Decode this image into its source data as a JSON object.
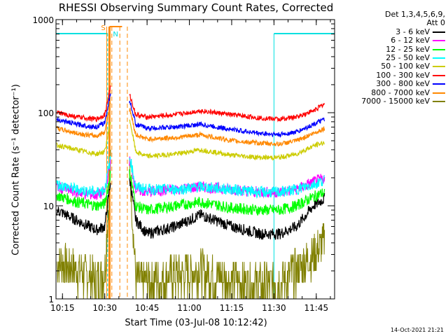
{
  "chart_data": {
    "type": "line",
    "title": "RHESSI Observing Summary Count Rates, Corrected",
    "xlabel": "Start Time (03-Jul-08 10:12:42)",
    "ylabel": "Corrected Count Rate (s⁻¹ detector⁻¹)",
    "yscale": "log",
    "ylim": [
      1,
      1000
    ],
    "xlim": [
      "10:12:42",
      "11:51:30"
    ],
    "x_ticks": [
      "10:15",
      "10:30",
      "10:45",
      "11:00",
      "11:15",
      "11:30",
      "11:45"
    ],
    "y_ticks": [
      "1",
      "10",
      "100",
      "1000"
    ],
    "legend_header": [
      "Det 1,3,4,5,6,9,",
      "Att 0"
    ],
    "legend_position": "right",
    "timestamp": "14-Oct-2021 21:21",
    "markers": {
      "s_label": "S",
      "n_label": "N",
      "night_periods": [
        [
          "10:12:42",
          "10:31:00"
        ],
        [
          "11:30:00",
          "11:51:30"
        ]
      ],
      "saa_time": "10:31:40",
      "dashed_times": [
        "10:32:30",
        "10:35:20",
        "10:38:00"
      ]
    },
    "series": [
      {
        "name": "3 - 6 keV",
        "color": "#000000",
        "times": [
          "10:13",
          "10:20",
          "10:27",
          "10:30",
          "10:32",
          "10:39",
          "10:41",
          "10:45",
          "10:55",
          "11:04",
          "11:15",
          "11:25",
          "11:32",
          "11:38",
          "11:44",
          "11:48"
        ],
        "values": [
          9,
          7,
          5.5,
          6,
          18,
          18,
          7,
          5,
          6,
          8,
          6,
          5,
          5,
          6,
          10,
          12
        ]
      },
      {
        "name": "6 - 12 keV",
        "color": "#ff00ff",
        "times": [
          "10:13",
          "10:20",
          "10:27",
          "10:30",
          "10:32",
          "10:39",
          "10:41",
          "10:45",
          "10:55",
          "11:04",
          "11:15",
          "11:25",
          "11:32",
          "11:38",
          "11:44",
          "11:48"
        ],
        "values": [
          16,
          14,
          13,
          14,
          30,
          30,
          15,
          14,
          15,
          16,
          15,
          14,
          14,
          15,
          18,
          20
        ]
      },
      {
        "name": "12 - 25 keV",
        "color": "#00ff00",
        "times": [
          "10:13",
          "10:20",
          "10:27",
          "10:30",
          "10:32",
          "10:39",
          "10:41",
          "10:45",
          "10:55",
          "11:04",
          "11:15",
          "11:25",
          "11:32",
          "11:38",
          "11:44",
          "11:48"
        ],
        "values": [
          13,
          11,
          10,
          10.5,
          22,
          22,
          10,
          9,
          10,
          11,
          9.5,
          9,
          9,
          10,
          12.5,
          14
        ]
      },
      {
        "name": "25 - 50 keV",
        "color": "#00ffff",
        "times": [
          "10:13",
          "10:20",
          "10:27",
          "10:30",
          "10:32",
          "10:39",
          "10:41",
          "10:45",
          "10:55",
          "11:04",
          "11:15",
          "11:25",
          "11:32",
          "11:38",
          "11:44",
          "11:48"
        ],
        "values": [
          17,
          15,
          14,
          15,
          32,
          32,
          16,
          15,
          15,
          16,
          15,
          14,
          14,
          15,
          17,
          19
        ]
      },
      {
        "name": "50 - 100 keV",
        "color": "#cccc00",
        "times": [
          "10:13",
          "10:20",
          "10:27",
          "10:30",
          "10:32",
          "10:39",
          "10:41",
          "10:45",
          "10:55",
          "11:04",
          "11:15",
          "11:25",
          "11:32",
          "11:38",
          "11:44",
          "11:48"
        ],
        "values": [
          45,
          40,
          36,
          38,
          80,
          80,
          38,
          34,
          36,
          40,
          35,
          33,
          33,
          36,
          44,
          48
        ]
      },
      {
        "name": "100 - 300 keV",
        "color": "#ff0000",
        "times": [
          "10:13",
          "10:20",
          "10:27",
          "10:30",
          "10:32",
          "10:39",
          "10:41",
          "10:45",
          "10:55",
          "11:04",
          "11:15",
          "11:25",
          "11:32",
          "11:38",
          "11:44",
          "11:48"
        ],
        "values": [
          100,
          90,
          85,
          95,
          190,
          150,
          95,
          90,
          95,
          105,
          95,
          88,
          85,
          90,
          105,
          125
        ]
      },
      {
        "name": "300 - 800 keV",
        "color": "#0000ff",
        "times": [
          "10:13",
          "10:20",
          "10:27",
          "10:30",
          "10:32",
          "10:39",
          "10:41",
          "10:45",
          "10:55",
          "11:04",
          "11:15",
          "11:25",
          "11:32",
          "11:38",
          "11:44",
          "11:48"
        ],
        "values": [
          85,
          75,
          70,
          78,
          160,
          130,
          75,
          68,
          70,
          75,
          66,
          60,
          58,
          62,
          75,
          85
        ]
      },
      {
        "name": "800 - 7000 keV",
        "color": "#ff8800",
        "times": [
          "10:13",
          "10:20",
          "10:27",
          "10:30",
          "10:32",
          "10:39",
          "10:41",
          "10:45",
          "10:55",
          "11:04",
          "11:15",
          "11:25",
          "11:32",
          "11:38",
          "11:44",
          "11:48"
        ],
        "values": [
          68,
          60,
          56,
          62,
          130,
          105,
          58,
          52,
          54,
          58,
          50,
          47,
          46,
          50,
          60,
          68
        ]
      },
      {
        "name": "7000 - 15000 keV",
        "color": "#808000",
        "times": [
          "10:13",
          "10:20",
          "10:27",
          "10:30",
          "10:32",
          "10:39",
          "10:41",
          "10:45",
          "10:55",
          "11:04",
          "11:15",
          "11:25",
          "11:32",
          "11:38",
          "11:44",
          "11:48"
        ],
        "values": [
          2.5,
          2,
          1.6,
          2,
          25,
          25,
          1.5,
          1.5,
          1.8,
          2,
          1.6,
          1.4,
          1.5,
          2,
          3,
          4
        ]
      }
    ]
  }
}
